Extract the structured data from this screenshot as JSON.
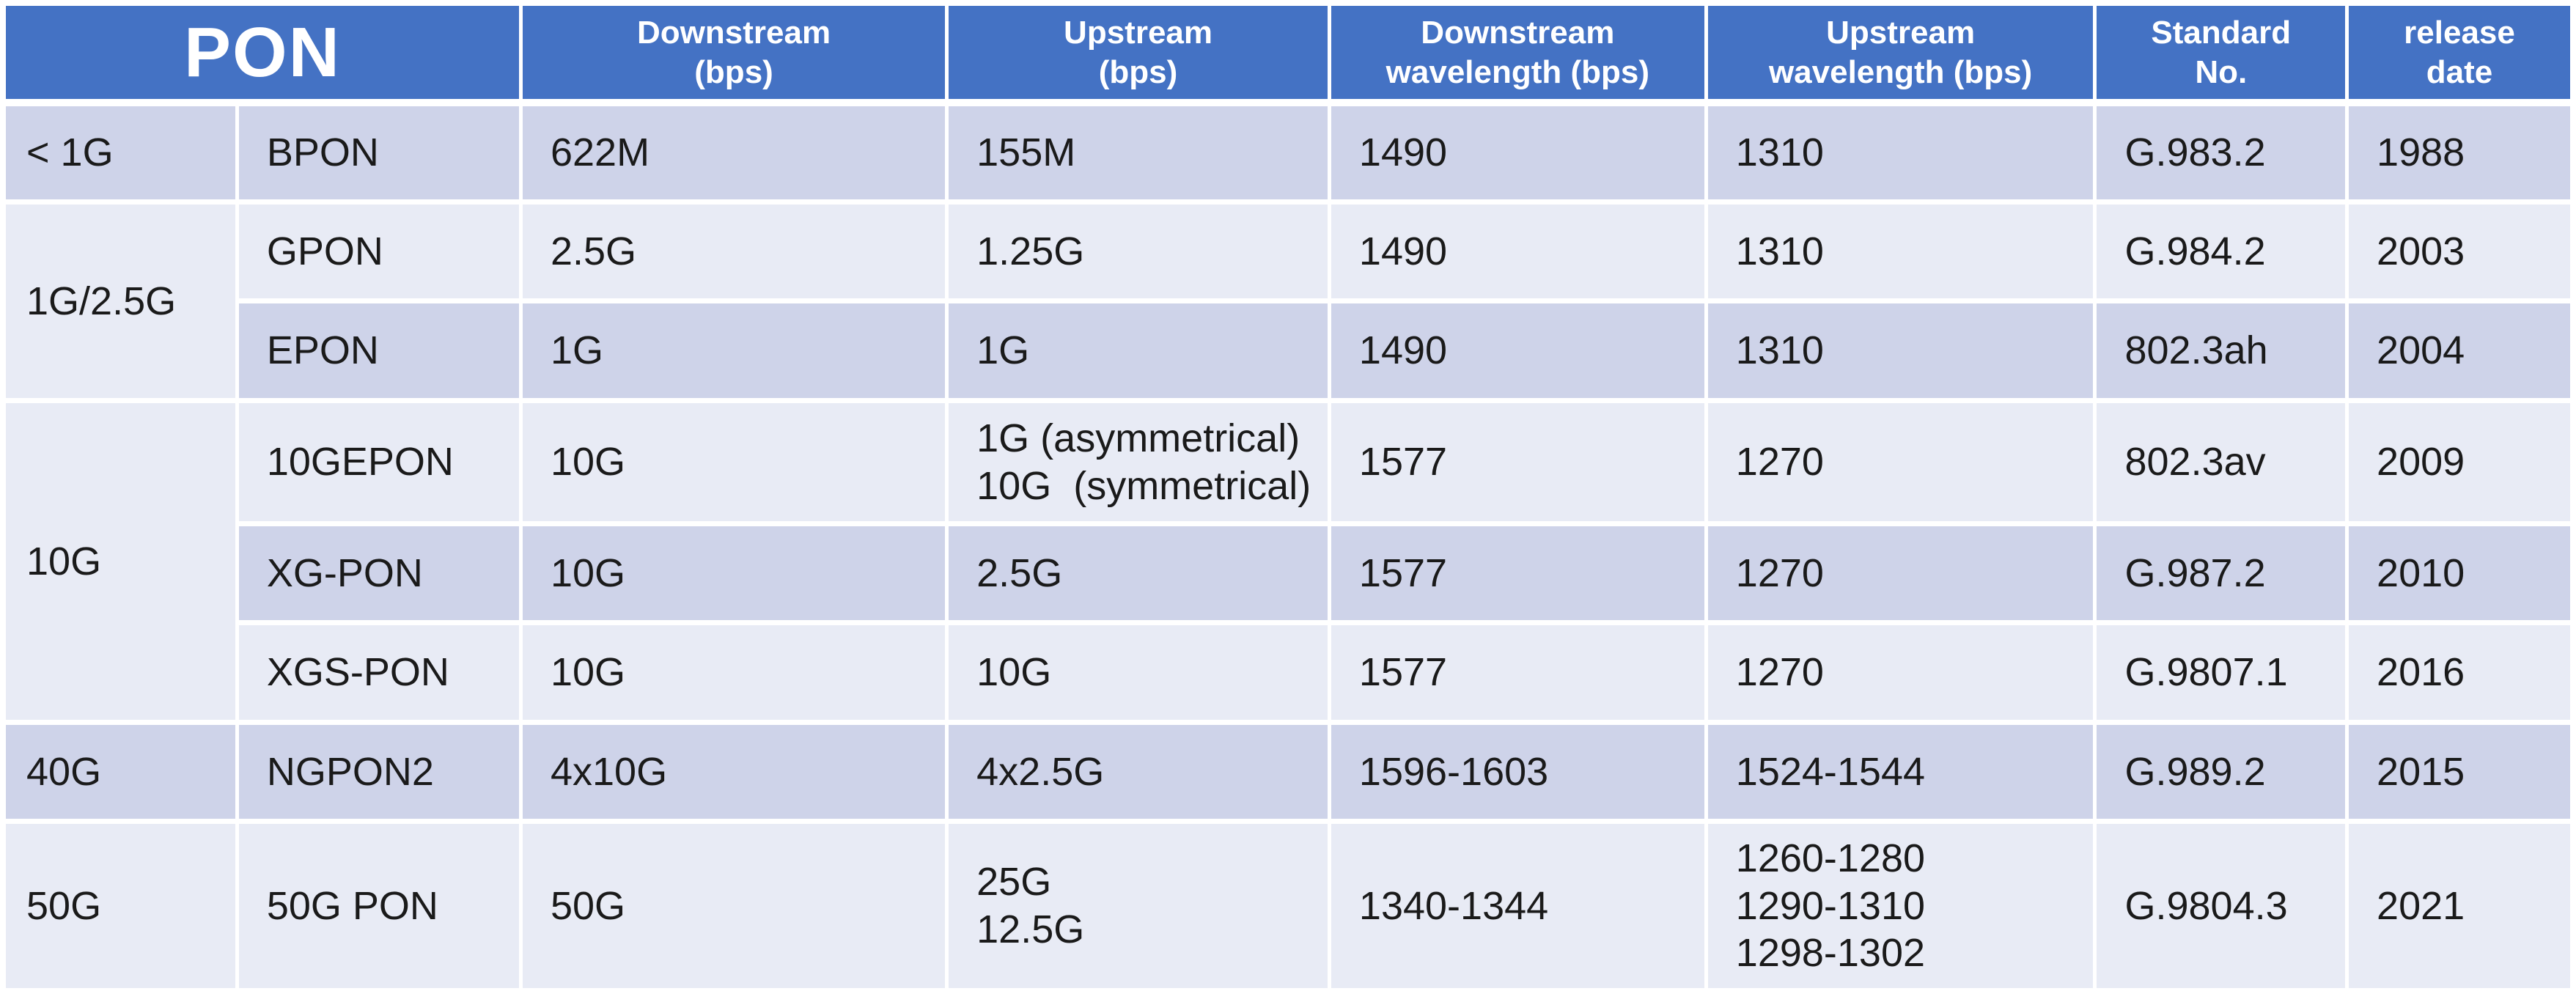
{
  "colors": {
    "header_bg": "#4472c4",
    "row_dark": "#ced3e9",
    "row_light": "#e8ebf5",
    "text": "#1a1a1a"
  },
  "chart_data": {
    "type": "table",
    "title": "PON",
    "header": {
      "pon": "PON",
      "downstream_bps": "Downstream\n(bps)",
      "upstream_bps": "Upstream\n(bps)",
      "downstream_wavelength": "Downstream\nwavelength (bps)",
      "upstream_wavelength": "Upstream\nwavelength (bps)",
      "standard_no": "Standard\nNo.",
      "release_date": "release\ndate"
    },
    "groups": [
      {
        "label": "< 1G",
        "rowspan": 1
      },
      {
        "label": "1G/2.5G",
        "rowspan": 2
      },
      {
        "label": "10G",
        "rowspan": 3
      },
      {
        "label": "40G",
        "rowspan": 1
      },
      {
        "label": "50G",
        "rowspan": 1
      }
    ],
    "rows": [
      {
        "name": "BPON",
        "downstream": "622M",
        "upstream": "155M",
        "downstream_wavelength": "1490",
        "upstream_wavelength": "1310",
        "standard": "G.983.2",
        "release": "1988"
      },
      {
        "name": "GPON",
        "downstream": "2.5G",
        "upstream": "1.25G",
        "downstream_wavelength": "1490",
        "upstream_wavelength": "1310",
        "standard": "G.984.2",
        "release": "2003"
      },
      {
        "name": "EPON",
        "downstream": "1G",
        "upstream": "1G",
        "downstream_wavelength": "1490",
        "upstream_wavelength": "1310",
        "standard": "802.3ah",
        "release": "2004"
      },
      {
        "name": "10GEPON",
        "downstream": "10G",
        "upstream": "1G (asymmetrical)\n10G  (symmetrical)",
        "downstream_wavelength": "1577",
        "upstream_wavelength": "1270",
        "standard": "802.3av",
        "release": "2009"
      },
      {
        "name": "XG-PON",
        "downstream": "10G",
        "upstream": "2.5G",
        "downstream_wavelength": "1577",
        "upstream_wavelength": "1270",
        "standard": "G.987.2",
        "release": "2010"
      },
      {
        "name": "XGS-PON",
        "downstream": "10G",
        "upstream": "10G",
        "downstream_wavelength": "1577",
        "upstream_wavelength": "1270",
        "standard": "G.9807.1",
        "release": "2016"
      },
      {
        "name": "NGPON2",
        "downstream": "4x10G",
        "upstream": "4x2.5G",
        "downstream_wavelength": "1596-1603",
        "upstream_wavelength": "1524-1544",
        "standard": "G.989.2",
        "release": "2015"
      },
      {
        "name": "50G PON",
        "downstream": "50G",
        "upstream": "25G\n12.5G",
        "downstream_wavelength": "1340-1344",
        "upstream_wavelength": "1260-1280\n1290-1310\n1298-1302",
        "standard": "G.9804.3",
        "release": "2021"
      }
    ]
  }
}
